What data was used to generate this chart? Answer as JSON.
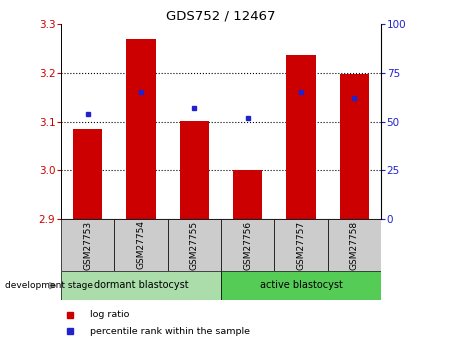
{
  "title": "GDS752 / 12467",
  "samples": [
    "GSM27753",
    "GSM27754",
    "GSM27755",
    "GSM27756",
    "GSM27757",
    "GSM27758"
  ],
  "log_ratio": [
    3.085,
    3.27,
    3.101,
    3.001,
    3.237,
    3.197
  ],
  "baseline": 2.9,
  "percentile_rank": [
    54,
    65,
    57,
    52,
    65,
    62
  ],
  "ylim_left": [
    2.9,
    3.3
  ],
  "ylim_right": [
    0,
    100
  ],
  "yticks_left": [
    2.9,
    3.0,
    3.1,
    3.2,
    3.3
  ],
  "yticks_right": [
    0,
    25,
    50,
    75,
    100
  ],
  "bar_color": "#cc0000",
  "dot_color": "#2222cc",
  "grid_color": "#000000",
  "bar_width": 0.55,
  "groups": [
    {
      "label": "dormant blastocyst",
      "indices": [
        0,
        1,
        2
      ],
      "color": "#aaddaa"
    },
    {
      "label": "active blastocyst",
      "indices": [
        3,
        4,
        5
      ],
      "color": "#55cc55"
    }
  ],
  "group_label": "development stage",
  "legend_items": [
    {
      "label": "log ratio",
      "color": "#cc0000"
    },
    {
      "label": "percentile rank within the sample",
      "color": "#2222cc"
    }
  ],
  "bg_color": "#ffffff",
  "plot_bg": "#ffffff",
  "tick_bg": "#cccccc"
}
